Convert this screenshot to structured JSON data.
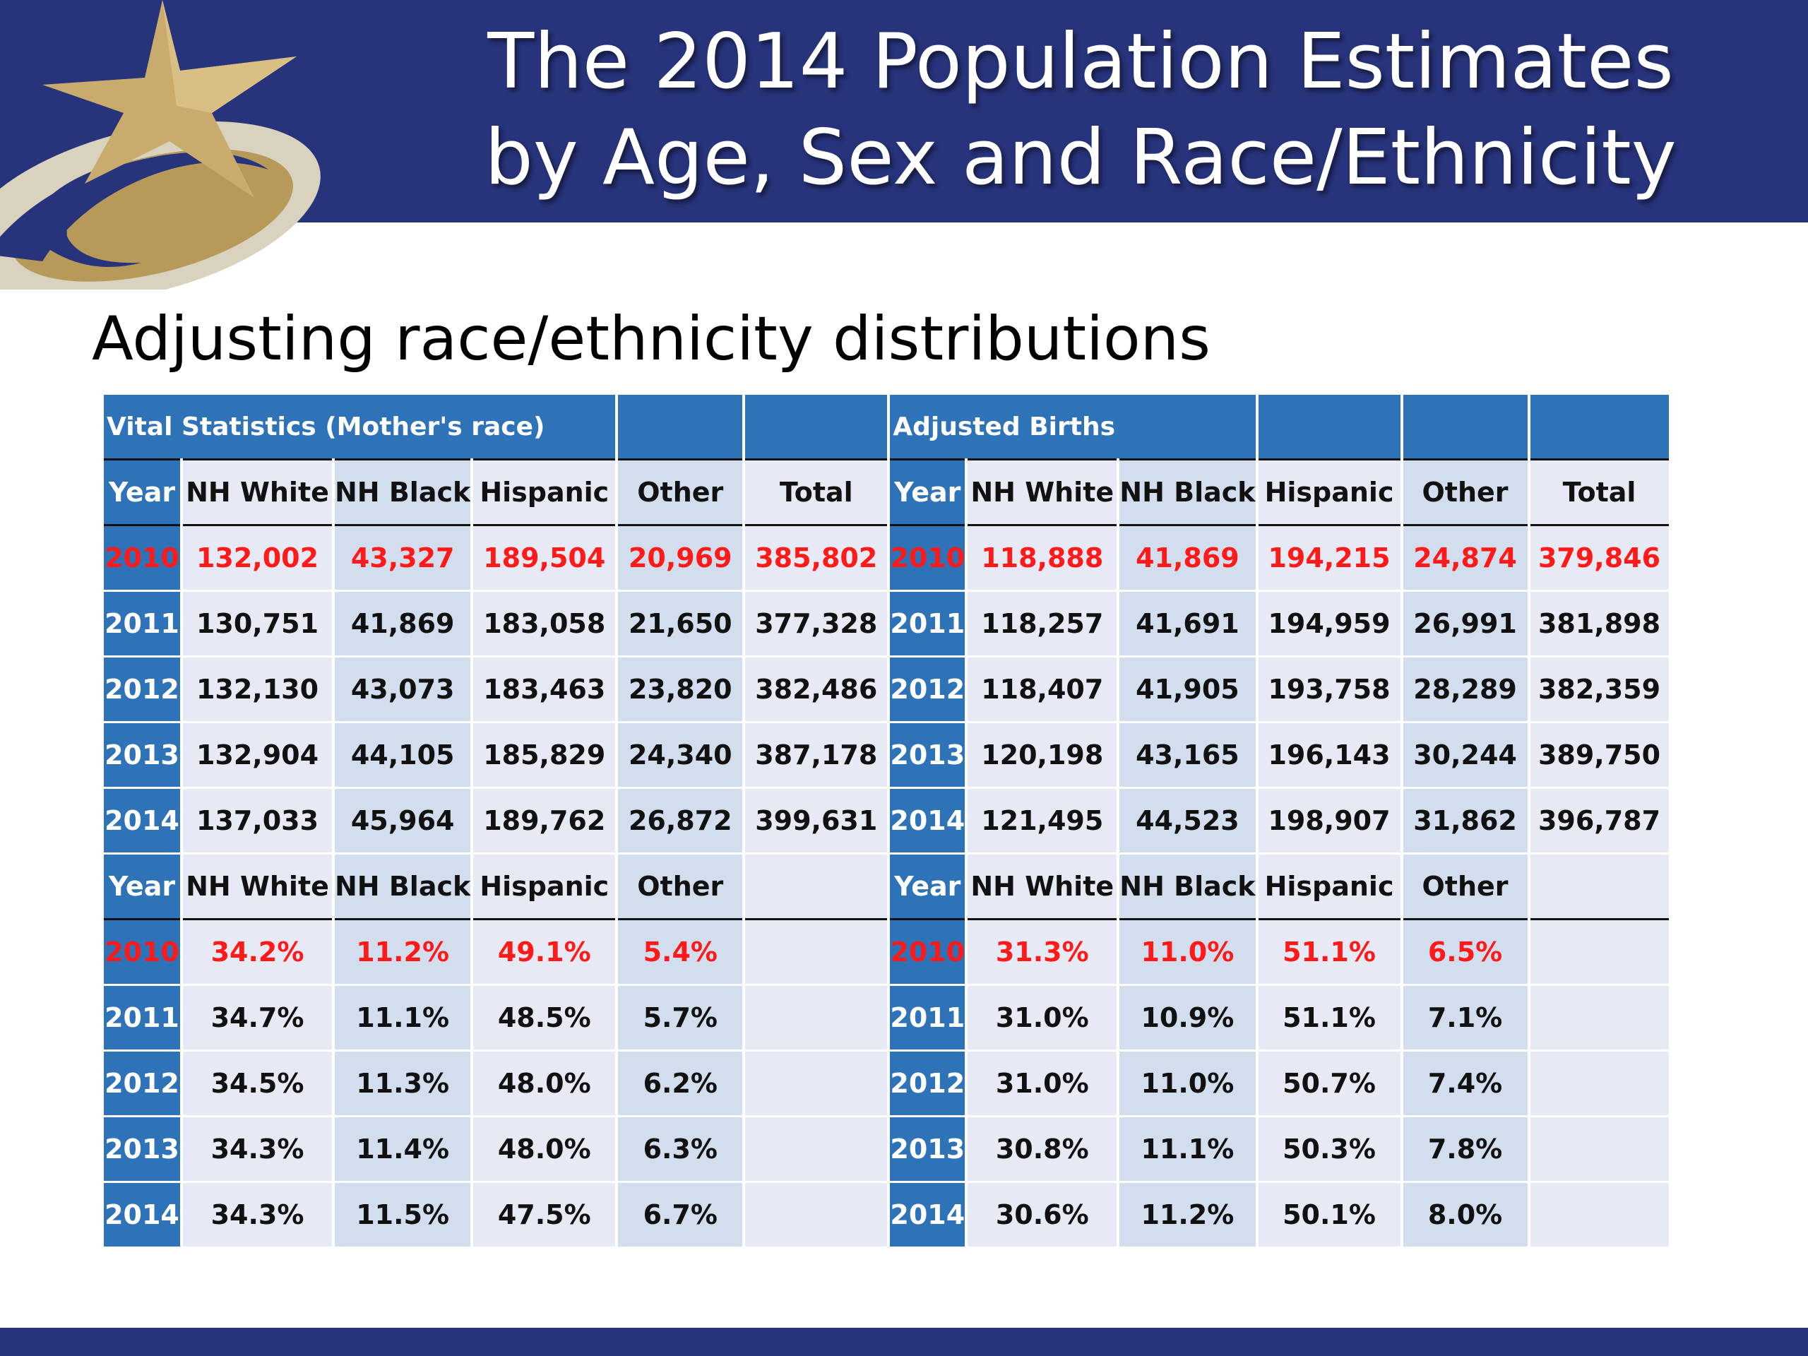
{
  "header": {
    "title_line1": "The 2014 Population Estimates",
    "title_line2": "by Age, Sex and Race/Ethnicity"
  },
  "subtitle": "Adjusting race/ethnicity distributions",
  "colors": {
    "band": "#27337a",
    "table_blue": "#2e72b8",
    "highlight_red": "#ff1a1a",
    "logo_gold": "#b79a5a"
  },
  "table": {
    "left_title": "Vital Statistics (Mother's race)",
    "right_title": "Adjusted Births",
    "columns": [
      "Year",
      "NH White",
      "NH Black",
      "Hispanic",
      "Other",
      "Total"
    ],
    "pct_columns": [
      "Year",
      "NH White",
      "NH Black",
      "Hispanic",
      "Other"
    ],
    "counts": [
      {
        "left": [
          "2010",
          "132,002",
          "43,327",
          "189,504",
          "20,969",
          "385,802"
        ],
        "right": [
          "2010",
          "118,888",
          "41,869",
          "194,215",
          "24,874",
          "379,846"
        ]
      },
      {
        "left": [
          "2011",
          "130,751",
          "41,869",
          "183,058",
          "21,650",
          "377,328"
        ],
        "right": [
          "2011",
          "118,257",
          "41,691",
          "194,959",
          "26,991",
          "381,898"
        ]
      },
      {
        "left": [
          "2012",
          "132,130",
          "43,073",
          "183,463",
          "23,820",
          "382,486"
        ],
        "right": [
          "2012",
          "118,407",
          "41,905",
          "193,758",
          "28,289",
          "382,359"
        ]
      },
      {
        "left": [
          "2013",
          "132,904",
          "44,105",
          "185,829",
          "24,340",
          "387,178"
        ],
        "right": [
          "2013",
          "120,198",
          "43,165",
          "196,143",
          "30,244",
          "389,750"
        ]
      },
      {
        "left": [
          "2014",
          "137,033",
          "45,964",
          "189,762",
          "26,872",
          "399,631"
        ],
        "right": [
          "2014",
          "121,495",
          "44,523",
          "198,907",
          "31,862",
          "396,787"
        ]
      }
    ],
    "percents": [
      {
        "left": [
          "2010",
          "34.2%",
          "11.2%",
          "49.1%",
          "5.4%"
        ],
        "right": [
          "2010",
          "31.3%",
          "11.0%",
          "51.1%",
          "6.5%"
        ]
      },
      {
        "left": [
          "2011",
          "34.7%",
          "11.1%",
          "48.5%",
          "5.7%"
        ],
        "right": [
          "2011",
          "31.0%",
          "10.9%",
          "51.1%",
          "7.1%"
        ]
      },
      {
        "left": [
          "2012",
          "34.5%",
          "11.3%",
          "48.0%",
          "6.2%"
        ],
        "right": [
          "2012",
          "31.0%",
          "11.0%",
          "50.7%",
          "7.4%"
        ]
      },
      {
        "left": [
          "2013",
          "34.3%",
          "11.4%",
          "48.0%",
          "6.3%"
        ],
        "right": [
          "2013",
          "30.8%",
          "11.1%",
          "50.3%",
          "7.8%"
        ]
      },
      {
        "left": [
          "2014",
          "34.3%",
          "11.5%",
          "47.5%",
          "6.7%"
        ],
        "right": [
          "2014",
          "30.6%",
          "11.2%",
          "50.1%",
          "8.0%"
        ]
      }
    ]
  }
}
